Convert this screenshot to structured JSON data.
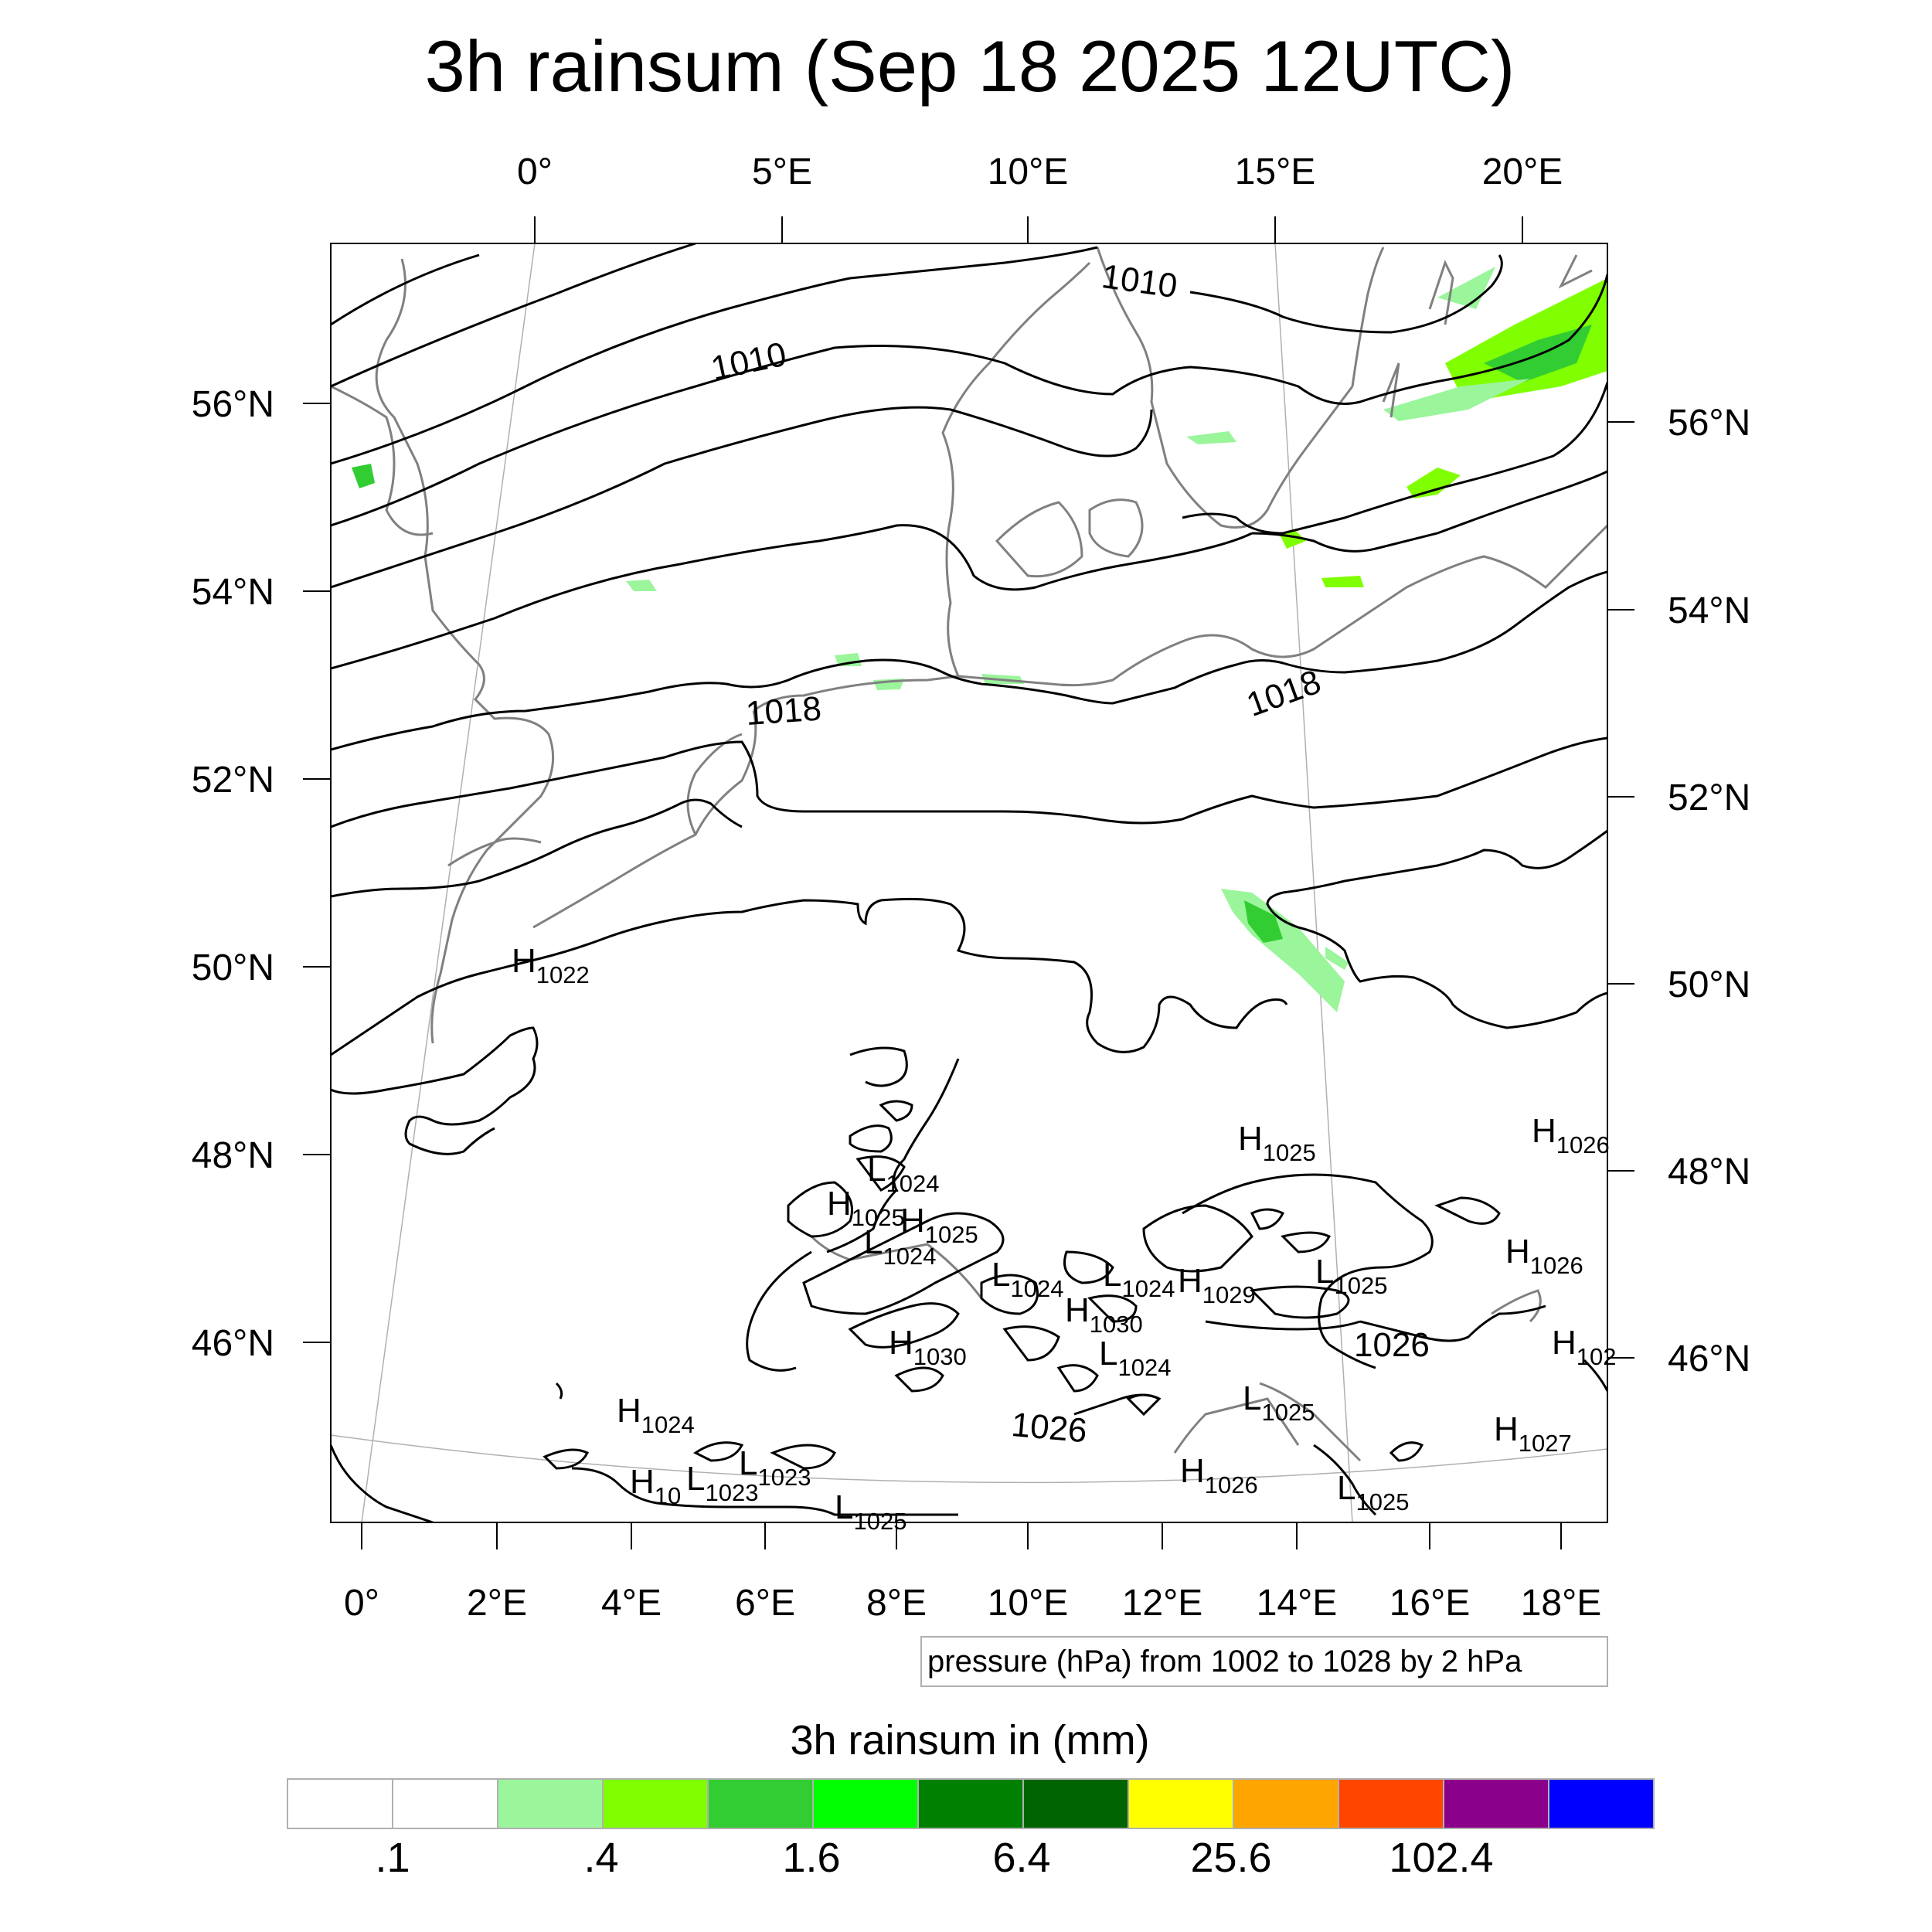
{
  "title": "3h rainsum (Sep 18 2025 12UTC)",
  "top_lon_labels": [
    "0°",
    "5°E",
    "10°E",
    "15°E",
    "20°E"
  ],
  "bottom_lon_labels": [
    "0°",
    "2°E",
    "4°E",
    "6°E",
    "8°E",
    "10°E",
    "12°E",
    "14°E",
    "16°E",
    "18°E"
  ],
  "left_lat_labels": [
    "56°N",
    "54°N",
    "52°N",
    "50°N",
    "48°N",
    "46°N"
  ],
  "right_lat_labels": [
    "56°N",
    "54°N",
    "52°N",
    "50°N",
    "48°N",
    "46°N"
  ],
  "contour_labels": [
    "1010",
    "1010",
    "1018",
    "1018",
    "1026",
    "1026"
  ],
  "pressure_centers": [
    {
      "type": "H",
      "value": "1022"
    },
    {
      "type": "H",
      "value": "1025"
    },
    {
      "type": "H",
      "value": "1026"
    },
    {
      "type": "L",
      "value": "1024"
    },
    {
      "type": "H",
      "value": "1025"
    },
    {
      "type": "H",
      "value": "1025"
    },
    {
      "type": "L",
      "value": "1024"
    },
    {
      "type": "H",
      "value": "1026"
    },
    {
      "type": "L",
      "value": "1024"
    },
    {
      "type": "L",
      "value": "1024"
    },
    {
      "type": "H",
      "value": "1029"
    },
    {
      "type": "L",
      "value": "1025"
    },
    {
      "type": "H",
      "value": "1030"
    },
    {
      "type": "H",
      "value": "1030"
    },
    {
      "type": "L",
      "value": "1024"
    },
    {
      "type": "H",
      "value": "102"
    },
    {
      "type": "L",
      "value": "1025"
    },
    {
      "type": "H",
      "value": "1024"
    },
    {
      "type": "H",
      "value": "1027"
    },
    {
      "type": "H",
      "value": "10"
    },
    {
      "type": "L",
      "value": "1023"
    },
    {
      "type": "L",
      "value": "1023"
    },
    {
      "type": "H",
      "value": "1026"
    },
    {
      "type": "L",
      "value": "1025"
    },
    {
      "type": "L",
      "value": "1025"
    }
  ],
  "contour_info": "pressure (hPa) from 1002 to 1028 by 2 hPa",
  "colorbar": {
    "title": "3h rainsum in (mm)",
    "colors": [
      "#ffffff",
      "#ffffff",
      "#9bf59b",
      "#80ff00",
      "#32cd32",
      "#00ff00",
      "#008000",
      "#006400",
      "#ffff00",
      "#ffa500",
      "#ff4500",
      "#8b008b",
      "#0000ff"
    ],
    "labels": [
      ".1",
      ".4",
      "1.6",
      "6.4",
      "25.6",
      "102.4"
    ]
  },
  "colors": {
    "coastline": "#808080",
    "isobar": "#000000",
    "rain_light": "#9bf59b",
    "rain_mid": "#80ff00",
    "rain_heavy": "#32cd32"
  }
}
